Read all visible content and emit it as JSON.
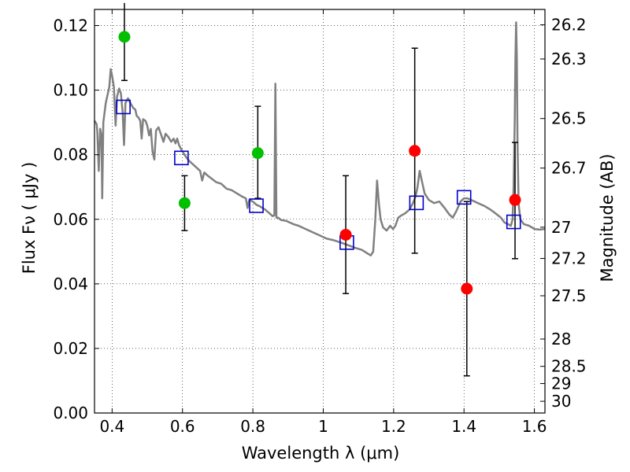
{
  "chart_data": {
    "type": "scatter",
    "title": "",
    "xlabel": "Wavelength  λ (μm)",
    "ylabel": "Flux  Fν  ( μJy )",
    "ylabel_right": "Magnitude (AB)",
    "xlim": [
      0.35,
      1.63
    ],
    "ylim": [
      0.0,
      0.125
    ],
    "grid": true,
    "colors": {
      "model": "#808080",
      "green": "#00c000",
      "red": "#ff0000",
      "box": "#0000cc",
      "error": "#000000"
    },
    "x_ticks": [
      {
        "v": 0.4,
        "label": "0.4"
      },
      {
        "v": 0.6,
        "label": "0.6"
      },
      {
        "v": 0.8,
        "label": "0.8"
      },
      {
        "v": 1.0,
        "label": "1"
      },
      {
        "v": 1.2,
        "label": "1.2"
      },
      {
        "v": 1.4,
        "label": "1.4"
      },
      {
        "v": 1.6,
        "label": "1.6"
      }
    ],
    "y_ticks": [
      {
        "v": 0.0,
        "label": "0.00"
      },
      {
        "v": 0.02,
        "label": "0.02"
      },
      {
        "v": 0.04,
        "label": "0.04"
      },
      {
        "v": 0.06,
        "label": "0.06"
      },
      {
        "v": 0.08,
        "label": "0.08"
      },
      {
        "v": 0.1,
        "label": "0.10"
      },
      {
        "v": 0.12,
        "label": "0.12"
      }
    ],
    "mag_ticks": [
      {
        "v": 26.2,
        "label": "26.2"
      },
      {
        "v": 26.3,
        "label": "26.3"
      },
      {
        "v": 26.5,
        "label": "26.5"
      },
      {
        "v": 26.7,
        "label": "26.7"
      },
      {
        "v": 27.0,
        "label": "27"
      },
      {
        "v": 27.2,
        "label": "27.2"
      },
      {
        "v": 27.5,
        "label": "27.5"
      },
      {
        "v": 28.0,
        "label": "28"
      },
      {
        "v": 28.5,
        "label": "28.5"
      },
      {
        "v": 29.0,
        "label": "29"
      },
      {
        "v": 30.0,
        "label": "30"
      }
    ],
    "observed": [
      {
        "x": 0.435,
        "y": 0.1165,
        "yerr_low": 0.103,
        "yerr_high": 0.127,
        "color": "green"
      },
      {
        "x": 0.606,
        "y": 0.065,
        "yerr_low": 0.0565,
        "yerr_high": 0.0735,
        "color": "green"
      },
      {
        "x": 0.814,
        "y": 0.0805,
        "yerr_low": 0.0665,
        "yerr_high": 0.095,
        "color": "green"
      },
      {
        "x": 1.064,
        "y": 0.0552,
        "yerr_low": 0.037,
        "yerr_high": 0.0735,
        "color": "red"
      },
      {
        "x": 1.26,
        "y": 0.0812,
        "yerr_low": 0.0495,
        "yerr_high": 0.113,
        "color": "red"
      },
      {
        "x": 1.408,
        "y": 0.0385,
        "yerr_low": 0.0115,
        "yerr_high": 0.0655,
        "color": "red"
      },
      {
        "x": 1.545,
        "y": 0.066,
        "yerr_low": 0.0478,
        "yerr_high": 0.0838,
        "color": "red"
      }
    ],
    "model_photometry": [
      {
        "x": 0.432,
        "y": 0.0948
      },
      {
        "x": 0.597,
        "y": 0.079
      },
      {
        "x": 0.81,
        "y": 0.0642
      },
      {
        "x": 1.067,
        "y": 0.0528
      },
      {
        "x": 1.265,
        "y": 0.0651
      },
      {
        "x": 1.4,
        "y": 0.0668
      },
      {
        "x": 1.541,
        "y": 0.0592
      }
    ],
    "model_spectrum": [
      [
        0.35,
        0.0905
      ],
      [
        0.356,
        0.0895
      ],
      [
        0.358,
        0.087
      ],
      [
        0.362,
        0.075
      ],
      [
        0.366,
        0.088
      ],
      [
        0.37,
        0.086
      ],
      [
        0.372,
        0.0665
      ],
      [
        0.375,
        0.09
      ],
      [
        0.382,
        0.096
      ],
      [
        0.388,
        0.099
      ],
      [
        0.392,
        0.101
      ],
      [
        0.396,
        0.1065
      ],
      [
        0.4,
        0.1045
      ],
      [
        0.405,
        0.101
      ],
      [
        0.41,
        0.089
      ],
      [
        0.414,
        0.098
      ],
      [
        0.42,
        0.1005
      ],
      [
        0.425,
        0.099
      ],
      [
        0.43,
        0.093
      ],
      [
        0.434,
        0.083
      ],
      [
        0.438,
        0.096
      ],
      [
        0.445,
        0.0975
      ],
      [
        0.452,
        0.096
      ],
      [
        0.46,
        0.0945
      ],
      [
        0.466,
        0.094
      ],
      [
        0.47,
        0.092
      ],
      [
        0.475,
        0.0915
      ],
      [
        0.48,
        0.0905
      ],
      [
        0.484,
        0.085
      ],
      [
        0.488,
        0.091
      ],
      [
        0.495,
        0.0905
      ],
      [
        0.5,
        0.089
      ],
      [
        0.505,
        0.086
      ],
      [
        0.51,
        0.088
      ],
      [
        0.515,
        0.081
      ],
      [
        0.52,
        0.0785
      ],
      [
        0.525,
        0.0875
      ],
      [
        0.532,
        0.0885
      ],
      [
        0.54,
        0.086
      ],
      [
        0.546,
        0.084
      ],
      [
        0.552,
        0.0865
      ],
      [
        0.56,
        0.0855
      ],
      [
        0.568,
        0.084
      ],
      [
        0.575,
        0.085
      ],
      [
        0.58,
        0.0835
      ],
      [
        0.585,
        0.085
      ],
      [
        0.59,
        0.083
      ],
      [
        0.595,
        0.082
      ],
      [
        0.6,
        0.081
      ],
      [
        0.606,
        0.08
      ],
      [
        0.612,
        0.079
      ],
      [
        0.62,
        0.078
      ],
      [
        0.63,
        0.077
      ],
      [
        0.64,
        0.076
      ],
      [
        0.65,
        0.075
      ],
      [
        0.656,
        0.072
      ],
      [
        0.662,
        0.0745
      ],
      [
        0.672,
        0.0735
      ],
      [
        0.684,
        0.0725
      ],
      [
        0.696,
        0.0715
      ],
      [
        0.71,
        0.071
      ],
      [
        0.725,
        0.0695
      ],
      [
        0.74,
        0.069
      ],
      [
        0.755,
        0.068
      ],
      [
        0.77,
        0.067
      ],
      [
        0.78,
        0.0665
      ],
      [
        0.785,
        0.0635
      ],
      [
        0.79,
        0.066
      ],
      [
        0.8,
        0.0655
      ],
      [
        0.81,
        0.0645
      ],
      [
        0.82,
        0.064
      ],
      [
        0.835,
        0.063
      ],
      [
        0.848,
        0.0618
      ],
      [
        0.856,
        0.061
      ],
      [
        0.861,
        0.0612
      ],
      [
        0.864,
        0.102
      ],
      [
        0.867,
        0.0605
      ],
      [
        0.872,
        0.0605
      ],
      [
        0.88,
        0.0598
      ],
      [
        0.895,
        0.0595
      ],
      [
        0.905,
        0.059
      ],
      [
        0.915,
        0.0585
      ],
      [
        0.93,
        0.058
      ],
      [
        0.95,
        0.057
      ],
      [
        0.97,
        0.056
      ],
      [
        0.99,
        0.055
      ],
      [
        1.01,
        0.054
      ],
      [
        1.03,
        0.0535
      ],
      [
        1.05,
        0.0528
      ],
      [
        1.07,
        0.052
      ],
      [
        1.09,
        0.0512
      ],
      [
        1.11,
        0.0505
      ],
      [
        1.125,
        0.0495
      ],
      [
        1.135,
        0.0488
      ],
      [
        1.142,
        0.05
      ],
      [
        1.148,
        0.06
      ],
      [
        1.153,
        0.072
      ],
      [
        1.158,
        0.065
      ],
      [
        1.163,
        0.06
      ],
      [
        1.17,
        0.0575
      ],
      [
        1.18,
        0.0565
      ],
      [
        1.19,
        0.058
      ],
      [
        1.198,
        0.057
      ],
      [
        1.205,
        0.058
      ],
      [
        1.213,
        0.0605
      ],
      [
        1.222,
        0.0612
      ],
      [
        1.232,
        0.0618
      ],
      [
        1.245,
        0.063
      ],
      [
        1.255,
        0.065
      ],
      [
        1.262,
        0.067
      ],
      [
        1.268,
        0.07
      ],
      [
        1.274,
        0.075
      ],
      [
        1.28,
        0.072
      ],
      [
        1.288,
        0.068
      ],
      [
        1.3,
        0.066
      ],
      [
        1.315,
        0.065
      ],
      [
        1.33,
        0.0655
      ],
      [
        1.345,
        0.0635
      ],
      [
        1.358,
        0.0615
      ],
      [
        1.368,
        0.0605
      ],
      [
        1.378,
        0.0625
      ],
      [
        1.39,
        0.0655
      ],
      [
        1.4,
        0.0665
      ],
      [
        1.41,
        0.0665
      ],
      [
        1.42,
        0.066
      ],
      [
        1.44,
        0.065
      ],
      [
        1.46,
        0.064
      ],
      [
        1.475,
        0.063
      ],
      [
        1.49,
        0.0618
      ],
      [
        1.505,
        0.0605
      ],
      [
        1.515,
        0.059
      ],
      [
        1.525,
        0.0585
      ],
      [
        1.533,
        0.058
      ],
      [
        1.538,
        0.06
      ],
      [
        1.541,
        0.07
      ],
      [
        1.544,
        0.09
      ],
      [
        1.546,
        0.11
      ],
      [
        1.548,
        0.121
      ],
      [
        1.55,
        0.11
      ],
      [
        1.552,
        0.085
      ],
      [
        1.555,
        0.065
      ],
      [
        1.56,
        0.06
      ],
      [
        1.57,
        0.0585
      ],
      [
        1.585,
        0.058
      ],
      [
        1.6,
        0.057
      ],
      [
        1.615,
        0.0568
      ],
      [
        1.63,
        0.057
      ]
    ]
  }
}
